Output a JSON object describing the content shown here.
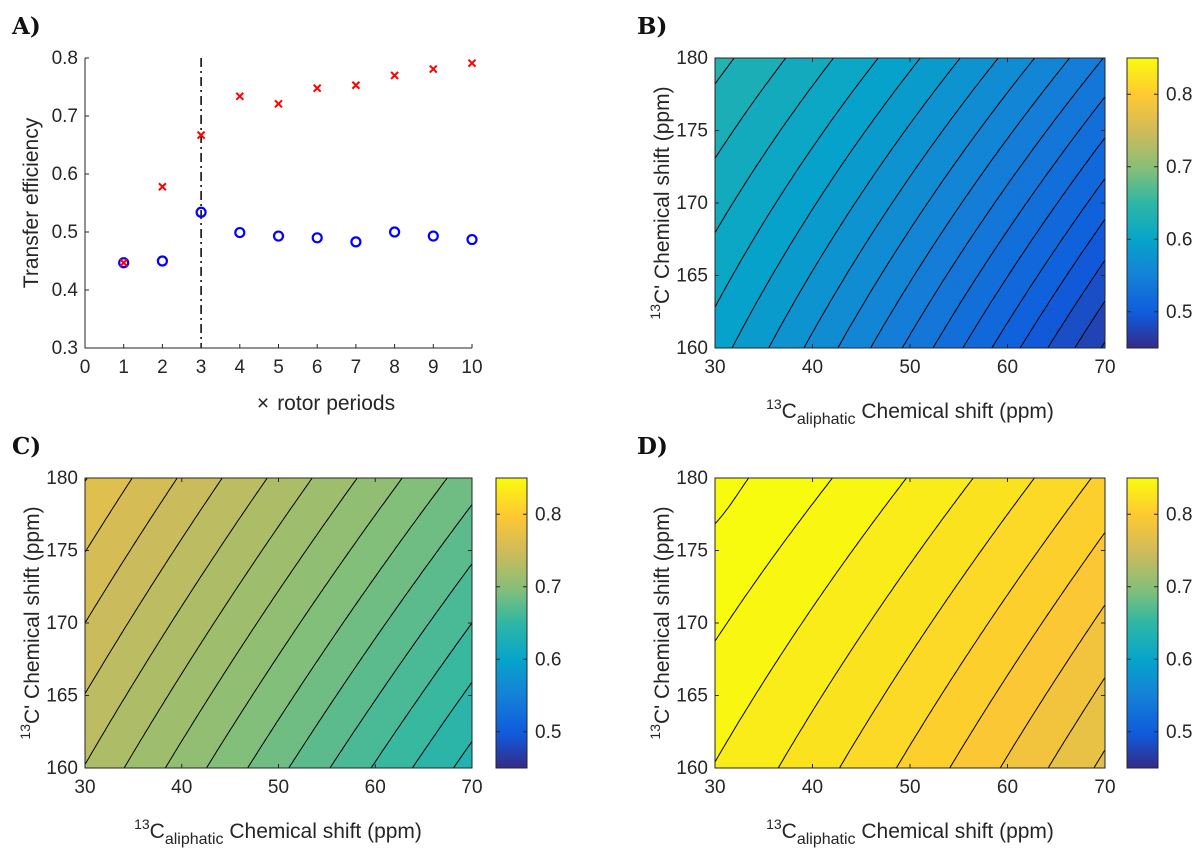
{
  "chart_data": [
    {
      "panel": "A)",
      "type": "scatter",
      "xlabel_symbol": "×",
      "xlabel": "rotor periods",
      "ylabel": "Transfer efficiency",
      "xlim": [
        0,
        10
      ],
      "ylim": [
        0.3,
        0.8
      ],
      "xticks": [
        0,
        1,
        2,
        3,
        4,
        5,
        6,
        7,
        8,
        9,
        10
      ],
      "yticks": [
        0.3,
        0.4,
        0.5,
        0.6,
        0.7,
        0.8
      ],
      "vline_x": 3,
      "series": [
        {
          "name": "circles",
          "marker": "o",
          "color": "#0000ff",
          "x": [
            1,
            2,
            3,
            4,
            5,
            6,
            7,
            8,
            9,
            10
          ],
          "y": [
            0.447,
            0.45,
            0.534,
            0.499,
            0.493,
            0.49,
            0.483,
            0.5,
            0.493,
            0.487
          ]
        },
        {
          "name": "crosses",
          "marker": "x",
          "color": "#ff0000",
          "x": [
            1,
            2,
            3,
            4,
            5,
            6,
            7,
            8,
            9,
            10
          ],
          "y": [
            0.447,
            0.578,
            0.667,
            0.734,
            0.721,
            0.748,
            0.753,
            0.77,
            0.781,
            0.791
          ]
        }
      ]
    },
    {
      "panel": "B)",
      "type": "heatmap",
      "xlabel_sup": "13",
      "xlabel_main": "C",
      "xlabel_sub": "aliphatic",
      "xlabel_rest": " Chemical shift (ppm)",
      "ylabel_sup": "13",
      "ylabel_rest": "C' Chemical shift (ppm)",
      "xlim": [
        30,
        70
      ],
      "ylim": [
        160,
        180
      ],
      "xticks": [
        30,
        40,
        50,
        60,
        70
      ],
      "yticks": [
        160,
        165,
        170,
        175,
        180
      ],
      "clim": [
        0.45,
        0.85
      ],
      "cticks": [
        0.5,
        0.6,
        0.7,
        0.8
      ],
      "surface": {
        "base": 0.565,
        "a": -0.00275,
        "b": 0.00275,
        "c": -1.5e-05,
        "d": 4e-05
      },
      "contour_step": 0.01
    },
    {
      "panel": "C)",
      "type": "heatmap",
      "xlabel_sup": "13",
      "xlabel_main": "C",
      "xlabel_sub": "aliphatic",
      "xlabel_rest": " Chemical shift (ppm)",
      "ylabel_sup": "13",
      "ylabel_rest": "C' Chemical shift (ppm)",
      "xlim": [
        30,
        70
      ],
      "ylim": [
        160,
        180
      ],
      "xticks": [
        30,
        40,
        50,
        60,
        70
      ],
      "yticks": [
        160,
        165,
        170,
        175,
        180
      ],
      "clim": [
        0.45,
        0.85
      ],
      "cticks": [
        0.5,
        0.6,
        0.7,
        0.8
      ],
      "surface": {
        "base": 0.705,
        "a": -0.00225,
        "b": 0.00225,
        "c": 0,
        "d": 1e-05
      },
      "contour_step": 0.01
    },
    {
      "panel": "D)",
      "type": "heatmap",
      "xlabel_sup": "13",
      "xlabel_main": "C",
      "xlabel_sub": "aliphatic",
      "xlabel_rest": " Chemical shift (ppm)",
      "ylabel_sup": "13",
      "ylabel_rest": "C' Chemical shift (ppm)",
      "xlim": [
        30,
        70
      ],
      "ylim": [
        160,
        180
      ],
      "xticks": [
        30,
        40,
        50,
        60,
        70
      ],
      "yticks": [
        160,
        165,
        170,
        175,
        180
      ],
      "clim": [
        0.45,
        0.85
      ],
      "cticks": [
        0.5,
        0.6,
        0.7,
        0.8
      ],
      "surface": {
        "base": 0.8235,
        "a": -0.0016,
        "b": 0.0016,
        "c": -1e-05,
        "d": 2e-05,
        "bump": 0.0009,
        "bx": 30,
        "by": 180,
        "bsx": 2.2,
        "bsy": 3.0
      },
      "contour_step": 0.01
    }
  ]
}
